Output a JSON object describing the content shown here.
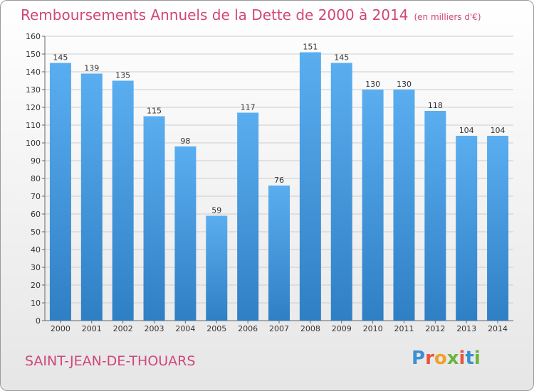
{
  "header": {
    "title": "Remboursements Annuels de la Dette de 2000 à 2014",
    "subtitle": "(en milliers d'€)"
  },
  "footer": {
    "town": "SAINT-JEAN-DE-THOUARS",
    "brand": "Proxiti"
  },
  "colors": {
    "title": "#d0467a",
    "bar_light": "#5aaef0",
    "bar_dark": "#2f7fc4",
    "grid": "#cccccc"
  },
  "chart_data": {
    "type": "bar",
    "title": "Remboursements Annuels de la Dette de 2000 à 2014",
    "xlabel": "",
    "ylabel": "",
    "categories": [
      "2000",
      "2001",
      "2002",
      "2003",
      "2004",
      "2005",
      "2006",
      "2007",
      "2008",
      "2009",
      "2010",
      "2011",
      "2012",
      "2013",
      "2014"
    ],
    "values": [
      145,
      139,
      135,
      115,
      98,
      59,
      117,
      76,
      151,
      145,
      130,
      130,
      118,
      104,
      104
    ],
    "ylim": [
      0,
      160
    ],
    "yticks": [
      0,
      10,
      20,
      30,
      40,
      50,
      60,
      70,
      80,
      90,
      100,
      110,
      120,
      130,
      140,
      150,
      160
    ],
    "grid": true,
    "data_labels": true
  }
}
